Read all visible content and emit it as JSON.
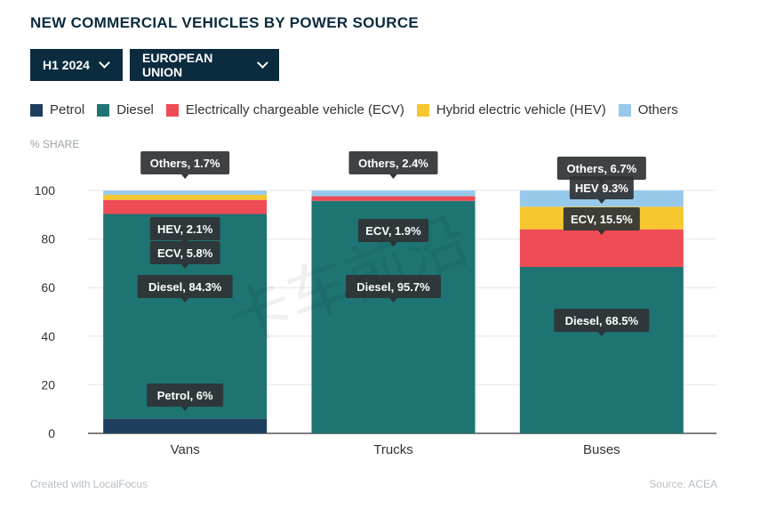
{
  "header": {
    "title": "NEW COMMERCIAL VEHICLES BY POWER SOURCE",
    "period_label": "H1 2024",
    "region_label": "EUROPEAN UNION"
  },
  "footer": {
    "credit": "Created with LocalFocus",
    "source": "Source:  ACEA"
  },
  "watermark": "卡车前沿",
  "colors": {
    "Petrol": "#1d3e5c",
    "Diesel": "#1e7472",
    "ECV": "#ef4b55",
    "HEV": "#f7c72f",
    "Others": "#97c9eb"
  },
  "chart_data": {
    "type": "bar",
    "stacked": true,
    "title": "NEW COMMERCIAL VEHICLES BY POWER SOURCE",
    "ylabel": "% SHARE",
    "xlabel": "",
    "ylim": [
      0,
      100
    ],
    "yticks": [
      0,
      20,
      40,
      60,
      80,
      100
    ],
    "grid": true,
    "legend_position": "top",
    "categories": [
      "Vans",
      "Trucks",
      "Buses"
    ],
    "series": [
      {
        "name": "Petrol",
        "key": "Petrol",
        "values": [
          6,
          0,
          0
        ]
      },
      {
        "name": "Diesel",
        "key": "Diesel",
        "values": [
          84.3,
          95.7,
          68.5
        ]
      },
      {
        "name": "Electrically chargeable vehicle (ECV)",
        "key": "ECV",
        "values": [
          5.8,
          1.9,
          15.5
        ]
      },
      {
        "name": "Hybrid electric vehicle (HEV)",
        "key": "HEV",
        "values": [
          2.1,
          0,
          9.3
        ]
      },
      {
        "name": "Others",
        "key": "Others",
        "values": [
          1.7,
          2.4,
          6.7
        ]
      }
    ],
    "annotations": [
      {
        "category": "Vans",
        "text": "Petrol, 6%"
      },
      {
        "category": "Vans",
        "text": "Diesel, 84.3%"
      },
      {
        "category": "Vans",
        "text": "ECV, 5.8%"
      },
      {
        "category": "Vans",
        "text": "HEV, 2.1%"
      },
      {
        "category": "Vans",
        "text": "Others, 1.7%"
      },
      {
        "category": "Trucks",
        "text": "Diesel, 95.7%"
      },
      {
        "category": "Trucks",
        "text": "ECV, 1.9%"
      },
      {
        "category": "Trucks",
        "text": "Others, 2.4%"
      },
      {
        "category": "Buses",
        "text": "Diesel, 68.5%"
      },
      {
        "category": "Buses",
        "text": "ECV, 15.5%"
      },
      {
        "category": "Buses",
        "text": "HEV 9.3%"
      },
      {
        "category": "Buses",
        "text": "Others, 6.7%"
      }
    ]
  }
}
